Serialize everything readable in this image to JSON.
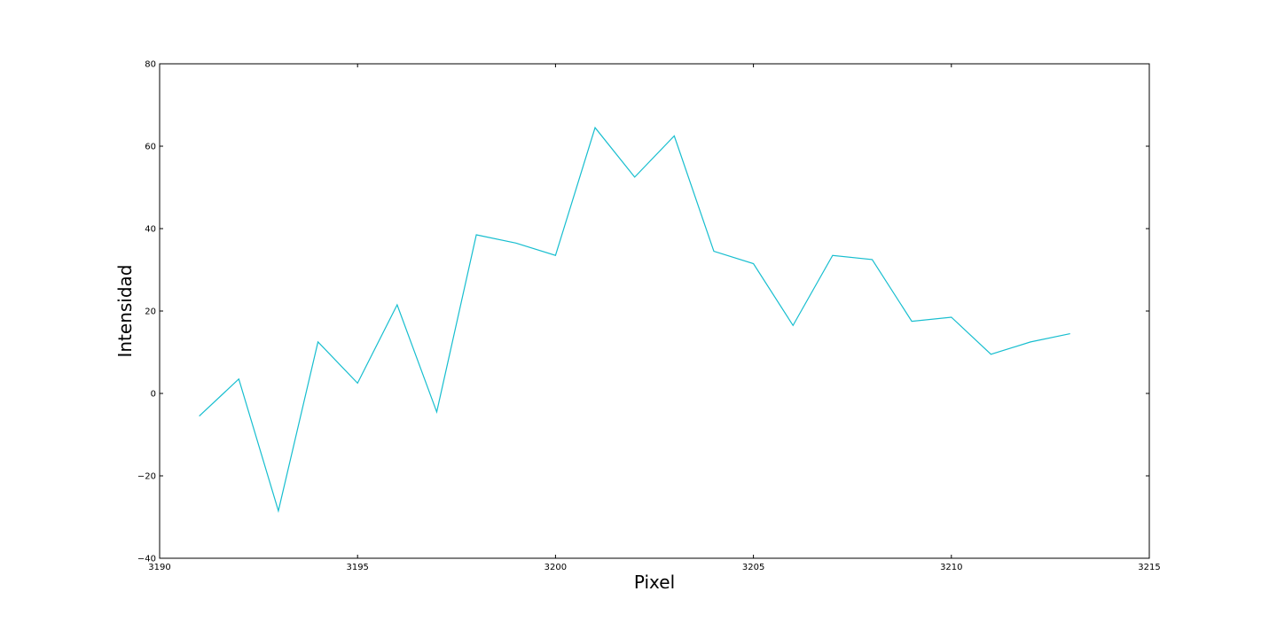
{
  "chart_data": {
    "type": "line",
    "title": "",
    "xlabel": "Pixel",
    "ylabel": "Intensidad",
    "xlim": [
      3190,
      3215
    ],
    "ylim": [
      -40,
      80
    ],
    "xticks": [
      3190,
      3195,
      3200,
      3205,
      3210,
      3215
    ],
    "yticks": [
      -40,
      -20,
      0,
      20,
      40,
      60,
      80
    ],
    "xtick_labels": [
      "3190",
      "3195",
      "3200",
      "3205",
      "3210",
      "3215"
    ],
    "ytick_labels": [
      "−40",
      "−20",
      "0",
      "20",
      "40",
      "60",
      "80"
    ],
    "grid": false,
    "legend": "none",
    "series": [
      {
        "color": "#17becf",
        "x": [
          3191,
          3192,
          3193,
          3194,
          3195,
          3196,
          3197,
          3198,
          3199,
          3200,
          3201,
          3202,
          3203,
          3204,
          3205,
          3206,
          3207,
          3208,
          3209,
          3210,
          3211,
          3212,
          3213
        ],
        "y": [
          -5.5,
          3.5,
          -28.5,
          12.5,
          2.5,
          21.5,
          -4.5,
          38.5,
          36.5,
          33.5,
          64.5,
          52.5,
          62.5,
          34.5,
          31.5,
          16.5,
          33.5,
          32.5,
          17.5,
          18.5,
          9.5,
          12.5,
          14.5
        ]
      }
    ]
  }
}
